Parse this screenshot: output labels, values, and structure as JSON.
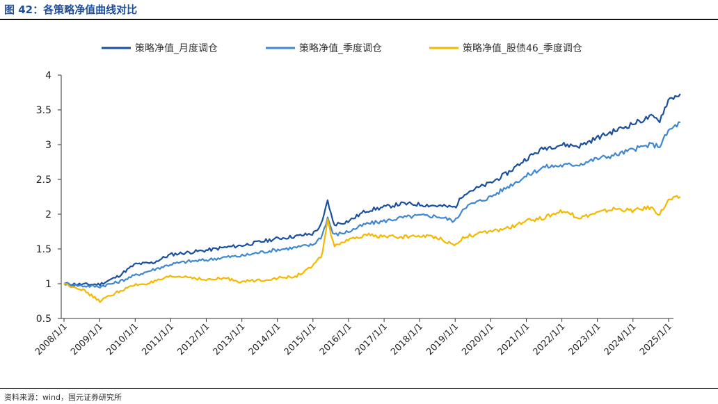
{
  "header": {
    "title": "图 42：各策略净值曲线对比"
  },
  "footer": {
    "source": "资料来源：wind，国元证券研究所"
  },
  "chart_data": {
    "type": "line",
    "title": "",
    "xlabel": "",
    "ylabel": "",
    "ylim": [
      0.5,
      4
    ],
    "yticks": [
      "0.5",
      "1",
      "1.5",
      "2",
      "2.5",
      "3",
      "3.5",
      "4"
    ],
    "xticks": [
      "2008/1/1",
      "2009/1/1",
      "2010/1/1",
      "2011/1/1",
      "2012/1/1",
      "2013/1/1",
      "2014/1/1",
      "2015/1/1",
      "2016/1/1",
      "2017/1/1",
      "2018/1/1",
      "2019/1/1",
      "2020/1/1",
      "2021/1/1",
      "2022/1/1",
      "2023/1/1",
      "2024/1/1",
      "2025/1/1"
    ],
    "grid": false,
    "legend_position": "top",
    "x": [
      "2008/1/1",
      "2008/7/1",
      "2009/1/1",
      "2009/7/1",
      "2010/1/1",
      "2010/7/1",
      "2011/1/1",
      "2011/7/1",
      "2012/1/1",
      "2012/7/1",
      "2013/1/1",
      "2013/7/1",
      "2014/1/1",
      "2014/7/1",
      "2015/1/1",
      "2015/4/1",
      "2015/6/1",
      "2015/8/1",
      "2016/1/1",
      "2016/7/1",
      "2017/1/1",
      "2017/7/1",
      "2018/1/1",
      "2018/7/1",
      "2019/1/1",
      "2019/4/1",
      "2019/7/1",
      "2020/1/1",
      "2020/7/1",
      "2021/1/1",
      "2021/7/1",
      "2022/1/1",
      "2022/7/1",
      "2023/1/1",
      "2023/7/1",
      "2024/1/1",
      "2024/7/1",
      "2024/10/1",
      "2025/1/1",
      "2025/5/1"
    ],
    "series": [
      {
        "name": "策略净值_月度调仓",
        "color": "#1a4fa0",
        "values": [
          1.0,
          0.99,
          0.99,
          1.1,
          1.28,
          1.3,
          1.42,
          1.45,
          1.48,
          1.52,
          1.55,
          1.6,
          1.65,
          1.68,
          1.72,
          1.85,
          2.2,
          1.85,
          1.9,
          2.05,
          2.1,
          2.15,
          2.14,
          2.12,
          2.1,
          2.3,
          2.35,
          2.45,
          2.6,
          2.8,
          2.95,
          3.0,
          2.98,
          3.1,
          3.2,
          3.3,
          3.4,
          3.35,
          3.65,
          3.73
        ]
      },
      {
        "name": "策略净值_季度调仓",
        "color": "#3f87d0",
        "values": [
          1.0,
          0.97,
          0.96,
          1.02,
          1.12,
          1.2,
          1.28,
          1.32,
          1.34,
          1.38,
          1.4,
          1.45,
          1.49,
          1.52,
          1.56,
          1.68,
          1.95,
          1.7,
          1.75,
          1.86,
          1.9,
          1.95,
          1.98,
          1.97,
          1.9,
          2.1,
          2.15,
          2.25,
          2.4,
          2.55,
          2.68,
          2.7,
          2.72,
          2.8,
          2.85,
          2.93,
          3.0,
          2.98,
          3.2,
          3.32
        ]
      },
      {
        "name": "策略净值_股债46_季度调仓",
        "color": "#f5b800",
        "values": [
          1.0,
          0.92,
          0.75,
          0.88,
          0.98,
          1.02,
          1.1,
          1.1,
          1.05,
          1.08,
          1.03,
          1.05,
          1.08,
          1.1,
          1.25,
          1.4,
          1.92,
          1.55,
          1.62,
          1.7,
          1.68,
          1.67,
          1.69,
          1.67,
          1.55,
          1.68,
          1.7,
          1.75,
          1.8,
          1.9,
          1.95,
          2.05,
          1.95,
          2.02,
          2.08,
          2.05,
          2.1,
          2.0,
          2.2,
          2.25
        ]
      }
    ]
  }
}
